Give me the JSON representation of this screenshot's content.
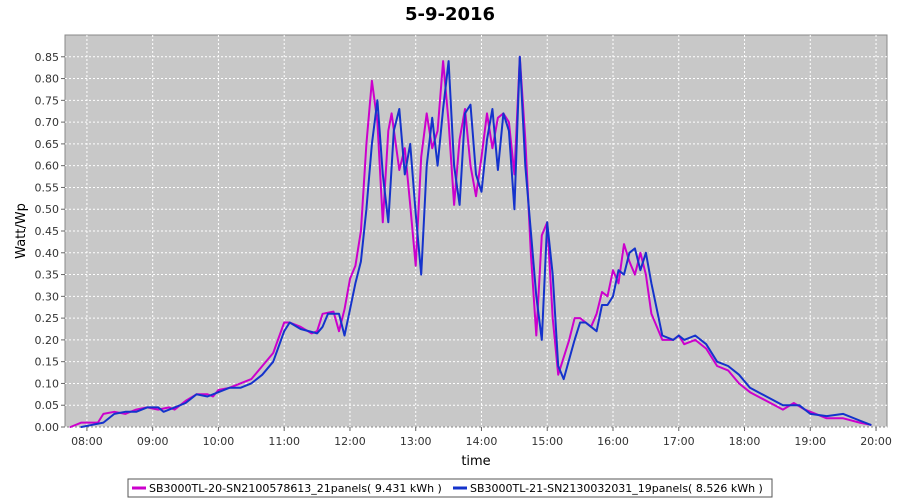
{
  "chart_data": {
    "type": "line",
    "title": "5-9-2016",
    "xlabel": "time",
    "ylabel": "Watt/Wp",
    "xlim": [
      "07:40",
      "20:10"
    ],
    "ylim": [
      0,
      0.9
    ],
    "x_ticks": [
      "08:00",
      "09:00",
      "10:00",
      "11:00",
      "12:00",
      "13:00",
      "14:00",
      "15:00",
      "16:00",
      "17:00",
      "18:00",
      "19:00",
      "20:00"
    ],
    "y_ticks": [
      "0.00",
      "0.05",
      "0.10",
      "0.15",
      "0.20",
      "0.25",
      "0.30",
      "0.35",
      "0.40",
      "0.45",
      "0.50",
      "0.55",
      "0.60",
      "0.65",
      "0.70",
      "0.75",
      "0.80",
      "0.85"
    ],
    "grid": true,
    "background": "#c8c8c8",
    "legend_position": "bottom",
    "series": [
      {
        "name": "SB3000TL-20-SN2100578613_21panels( 9.431 kWh )",
        "color": "#cc00cc",
        "points": [
          [
            "07:45",
            0.0
          ],
          [
            "07:55",
            0.01
          ],
          [
            "08:10",
            0.01
          ],
          [
            "08:15",
            0.03
          ],
          [
            "08:25",
            0.035
          ],
          [
            "08:35",
            0.03
          ],
          [
            "08:45",
            0.04
          ],
          [
            "08:55",
            0.045
          ],
          [
            "09:05",
            0.04
          ],
          [
            "09:15",
            0.045
          ],
          [
            "09:20",
            0.04
          ],
          [
            "09:30",
            0.06
          ],
          [
            "09:40",
            0.075
          ],
          [
            "09:50",
            0.075
          ],
          [
            "09:55",
            0.07
          ],
          [
            "10:00",
            0.085
          ],
          [
            "10:10",
            0.09
          ],
          [
            "10:20",
            0.1
          ],
          [
            "10:30",
            0.11
          ],
          [
            "10:40",
            0.14
          ],
          [
            "10:50",
            0.17
          ],
          [
            "11:00",
            0.24
          ],
          [
            "11:05",
            0.24
          ],
          [
            "11:15",
            0.23
          ],
          [
            "11:25",
            0.215
          ],
          [
            "11:30",
            0.22
          ],
          [
            "11:35",
            0.26
          ],
          [
            "11:45",
            0.265
          ],
          [
            "11:50",
            0.22
          ],
          [
            "11:55",
            0.27
          ],
          [
            "12:00",
            0.34
          ],
          [
            "12:05",
            0.37
          ],
          [
            "12:10",
            0.45
          ],
          [
            "12:15",
            0.65
          ],
          [
            "12:20",
            0.795
          ],
          [
            "12:25",
            0.7
          ],
          [
            "12:30",
            0.47
          ],
          [
            "12:35",
            0.68
          ],
          [
            "12:38",
            0.72
          ],
          [
            "12:45",
            0.59
          ],
          [
            "12:50",
            0.64
          ],
          [
            "12:55",
            0.51
          ],
          [
            "13:00",
            0.37
          ],
          [
            "13:05",
            0.62
          ],
          [
            "13:10",
            0.72
          ],
          [
            "13:15",
            0.64
          ],
          [
            "13:20",
            0.68
          ],
          [
            "13:25",
            0.84
          ],
          [
            "13:30",
            0.7
          ],
          [
            "13:35",
            0.51
          ],
          [
            "13:40",
            0.66
          ],
          [
            "13:45",
            0.73
          ],
          [
            "13:50",
            0.6
          ],
          [
            "13:55",
            0.53
          ],
          [
            "14:00",
            0.62
          ],
          [
            "14:05",
            0.72
          ],
          [
            "14:10",
            0.64
          ],
          [
            "14:15",
            0.71
          ],
          [
            "14:20",
            0.72
          ],
          [
            "14:25",
            0.7
          ],
          [
            "14:30",
            0.58
          ],
          [
            "14:35",
            0.85
          ],
          [
            "14:40",
            0.66
          ],
          [
            "14:45",
            0.4
          ],
          [
            "14:50",
            0.21
          ],
          [
            "14:55",
            0.44
          ],
          [
            "15:00",
            0.47
          ],
          [
            "15:05",
            0.25
          ],
          [
            "15:10",
            0.12
          ],
          [
            "15:20",
            0.2
          ],
          [
            "15:25",
            0.25
          ],
          [
            "15:30",
            0.25
          ],
          [
            "15:40",
            0.23
          ],
          [
            "15:45",
            0.26
          ],
          [
            "15:50",
            0.31
          ],
          [
            "15:55",
            0.3
          ],
          [
            "16:00",
            0.36
          ],
          [
            "16:05",
            0.33
          ],
          [
            "16:10",
            0.42
          ],
          [
            "16:15",
            0.38
          ],
          [
            "16:20",
            0.35
          ],
          [
            "16:25",
            0.4
          ],
          [
            "16:30",
            0.35
          ],
          [
            "16:35",
            0.26
          ],
          [
            "16:45",
            0.2
          ],
          [
            "16:55",
            0.2
          ],
          [
            "17:00",
            0.21
          ],
          [
            "17:05",
            0.19
          ],
          [
            "17:15",
            0.2
          ],
          [
            "17:25",
            0.18
          ],
          [
            "17:35",
            0.14
          ],
          [
            "17:45",
            0.13
          ],
          [
            "17:55",
            0.1
          ],
          [
            "18:05",
            0.08
          ],
          [
            "18:20",
            0.06
          ],
          [
            "18:35",
            0.04
          ],
          [
            "18:45",
            0.055
          ],
          [
            "18:55",
            0.04
          ],
          [
            "19:05",
            0.03
          ],
          [
            "19:15",
            0.02
          ],
          [
            "19:30",
            0.02
          ],
          [
            "19:45",
            0.01
          ],
          [
            "19:55",
            0.005
          ]
        ]
      },
      {
        "name": "SB3000TL-21-SN2130032031_19panels( 8.526 kWh )",
        "color": "#1433cc",
        "points": [
          [
            "07:55",
            0.0
          ],
          [
            "08:05",
            0.005
          ],
          [
            "08:15",
            0.01
          ],
          [
            "08:25",
            0.03
          ],
          [
            "08:35",
            0.035
          ],
          [
            "08:45",
            0.035
          ],
          [
            "08:55",
            0.045
          ],
          [
            "09:05",
            0.045
          ],
          [
            "09:10",
            0.035
          ],
          [
            "09:20",
            0.045
          ],
          [
            "09:30",
            0.055
          ],
          [
            "09:40",
            0.075
          ],
          [
            "09:50",
            0.07
          ],
          [
            "10:00",
            0.08
          ],
          [
            "10:10",
            0.09
          ],
          [
            "10:20",
            0.09
          ],
          [
            "10:30",
            0.1
          ],
          [
            "10:40",
            0.12
          ],
          [
            "10:50",
            0.15
          ],
          [
            "11:00",
            0.22
          ],
          [
            "11:05",
            0.24
          ],
          [
            "11:15",
            0.225
          ],
          [
            "11:30",
            0.215
          ],
          [
            "11:35",
            0.23
          ],
          [
            "11:40",
            0.26
          ],
          [
            "11:50",
            0.26
          ],
          [
            "11:55",
            0.21
          ],
          [
            "12:00",
            0.27
          ],
          [
            "12:05",
            0.33
          ],
          [
            "12:10",
            0.38
          ],
          [
            "12:15",
            0.5
          ],
          [
            "12:20",
            0.65
          ],
          [
            "12:25",
            0.75
          ],
          [
            "12:30",
            0.58
          ],
          [
            "12:35",
            0.47
          ],
          [
            "12:40",
            0.68
          ],
          [
            "12:45",
            0.73
          ],
          [
            "12:50",
            0.58
          ],
          [
            "12:55",
            0.65
          ],
          [
            "13:00",
            0.49
          ],
          [
            "13:05",
            0.35
          ],
          [
            "13:10",
            0.6
          ],
          [
            "13:15",
            0.71
          ],
          [
            "13:20",
            0.6
          ],
          [
            "13:25",
            0.73
          ],
          [
            "13:30",
            0.84
          ],
          [
            "13:35",
            0.6
          ],
          [
            "13:40",
            0.51
          ],
          [
            "13:45",
            0.72
          ],
          [
            "13:50",
            0.74
          ],
          [
            "13:55",
            0.58
          ],
          [
            "14:00",
            0.54
          ],
          [
            "14:05",
            0.66
          ],
          [
            "14:10",
            0.73
          ],
          [
            "14:15",
            0.59
          ],
          [
            "14:20",
            0.72
          ],
          [
            "14:25",
            0.68
          ],
          [
            "14:30",
            0.5
          ],
          [
            "14:35",
            0.85
          ],
          [
            "14:40",
            0.6
          ],
          [
            "14:45",
            0.45
          ],
          [
            "14:50",
            0.3
          ],
          [
            "14:55",
            0.2
          ],
          [
            "15:00",
            0.47
          ],
          [
            "15:05",
            0.35
          ],
          [
            "15:10",
            0.14
          ],
          [
            "15:15",
            0.11
          ],
          [
            "15:25",
            0.2
          ],
          [
            "15:30",
            0.24
          ],
          [
            "15:35",
            0.24
          ],
          [
            "15:45",
            0.22
          ],
          [
            "15:50",
            0.28
          ],
          [
            "15:55",
            0.28
          ],
          [
            "16:00",
            0.3
          ],
          [
            "16:05",
            0.36
          ],
          [
            "16:10",
            0.35
          ],
          [
            "16:15",
            0.4
          ],
          [
            "16:20",
            0.41
          ],
          [
            "16:25",
            0.36
          ],
          [
            "16:30",
            0.4
          ],
          [
            "16:35",
            0.33
          ],
          [
            "16:45",
            0.21
          ],
          [
            "16:55",
            0.2
          ],
          [
            "17:00",
            0.21
          ],
          [
            "17:05",
            0.2
          ],
          [
            "17:15",
            0.21
          ],
          [
            "17:25",
            0.19
          ],
          [
            "17:35",
            0.15
          ],
          [
            "17:45",
            0.14
          ],
          [
            "17:55",
            0.12
          ],
          [
            "18:05",
            0.09
          ],
          [
            "18:20",
            0.07
          ],
          [
            "18:35",
            0.05
          ],
          [
            "18:50",
            0.05
          ],
          [
            "19:00",
            0.03
          ],
          [
            "19:15",
            0.025
          ],
          [
            "19:30",
            0.03
          ],
          [
            "19:45",
            0.015
          ],
          [
            "19:55",
            0.005
          ]
        ]
      }
    ]
  }
}
